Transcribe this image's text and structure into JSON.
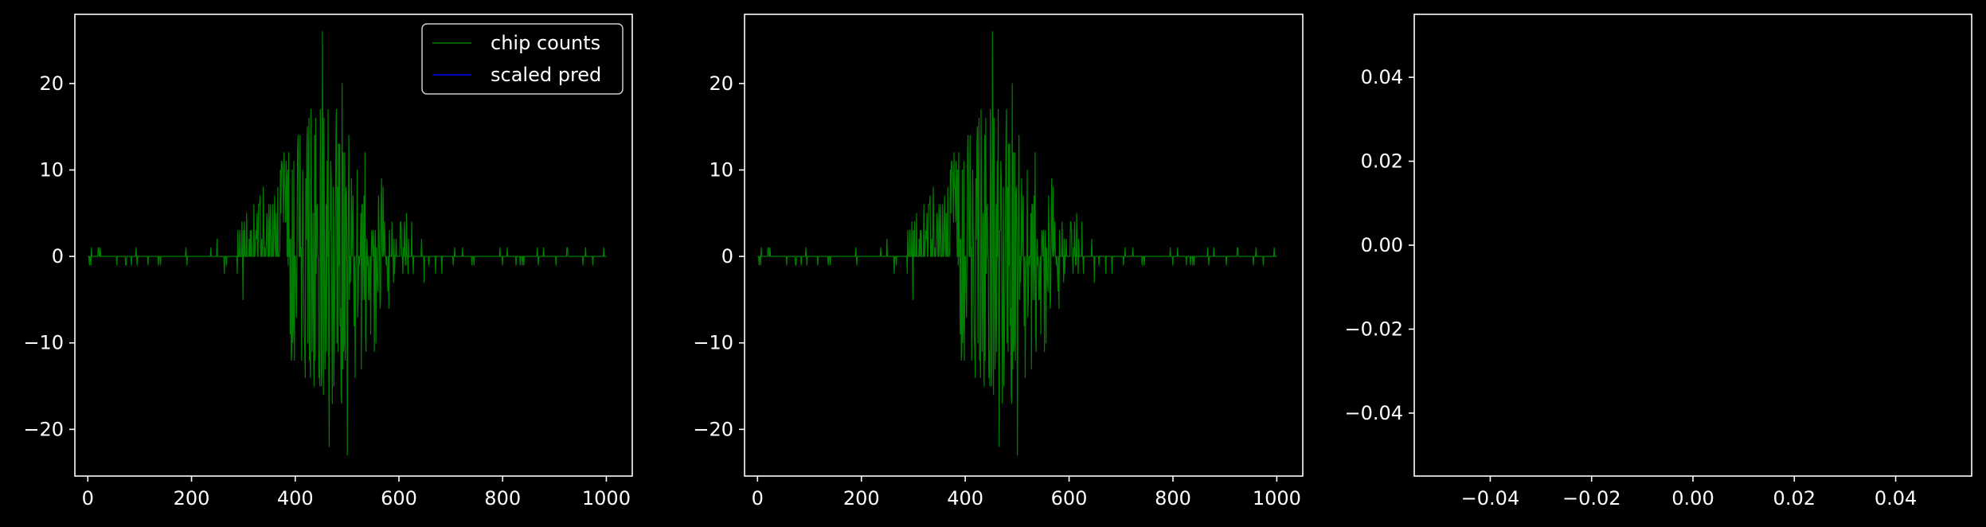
{
  "colors": {
    "background": "#000000",
    "axes": "#ffffff",
    "series_counts": "#008000",
    "series_pred": "#0000ff"
  },
  "chart_data": [
    {
      "type": "line",
      "xlim": [
        -25,
        1050
      ],
      "ylim": [
        -25.4,
        28
      ],
      "xticks": [
        0,
        200,
        400,
        600,
        800,
        1000
      ],
      "yticks": [
        -20,
        -10,
        0,
        10,
        20
      ],
      "xtick_labels": [
        "0",
        "200",
        "400",
        "600",
        "800",
        "1000"
      ],
      "ytick_labels": [
        "−20",
        "−10",
        "0",
        "10",
        "20"
      ],
      "legend": {
        "placement": "top-right",
        "entries": [
          "chip counts",
          "scaled pred"
        ]
      },
      "series": [
        {
          "name": "chip counts",
          "color": "#008000",
          "n_points": 1000,
          "x_range": [
            0,
            1000
          ],
          "center": 460,
          "spread": 90,
          "y_peak": 26,
          "y_trough": -23
        },
        {
          "name": "scaled pred",
          "color": "#0000ff",
          "n_points": 0
        }
      ]
    },
    {
      "type": "line",
      "xlim": [
        -25,
        1050
      ],
      "ylim": [
        -25.4,
        28
      ],
      "xticks": [
        0,
        200,
        400,
        600,
        800,
        1000
      ],
      "yticks": [
        -20,
        -10,
        0,
        10,
        20
      ],
      "xtick_labels": [
        "0",
        "200",
        "400",
        "600",
        "800",
        "1000"
      ],
      "ytick_labels": [
        "−20",
        "−10",
        "0",
        "10",
        "20"
      ],
      "series": [
        {
          "name": "",
          "color": "#008000",
          "n_points": 1000,
          "x_range": [
            0,
            1000
          ],
          "center": 460,
          "spread": 90,
          "y_peak": 26,
          "y_trough": -23
        }
      ]
    },
    {
      "type": "line",
      "xlim": [
        -0.055,
        0.055
      ],
      "ylim": [
        -0.055,
        0.055
      ],
      "xticks": [
        -0.04,
        -0.02,
        0.0,
        0.02,
        0.04
      ],
      "yticks": [
        -0.04,
        -0.02,
        0.0,
        0.02,
        0.04
      ],
      "xtick_labels": [
        "−0.04",
        "−0.02",
        "0.00",
        "0.02",
        "0.04"
      ],
      "ytick_labels": [
        "−0.04",
        "−0.02",
        "0.00",
        "0.02",
        "0.04"
      ],
      "series": []
    }
  ]
}
